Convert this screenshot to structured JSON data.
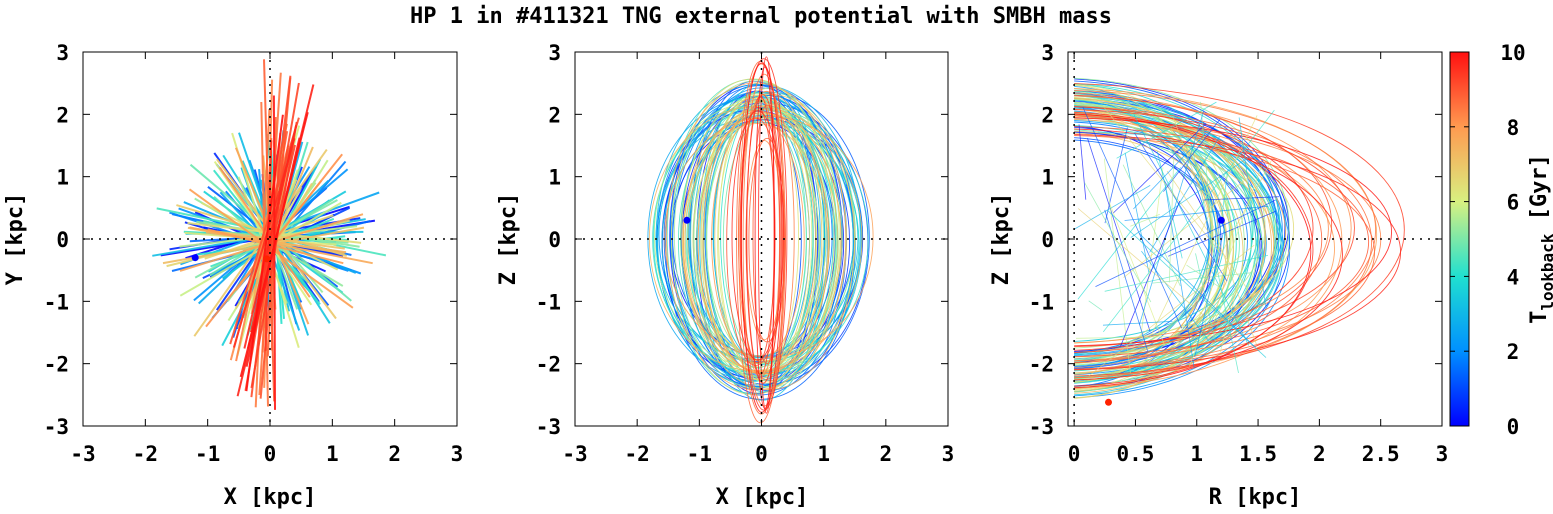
{
  "title": "HP 1 in #411321 TNG external potential with SMBH mass",
  "colors": {
    "frame": "#000000",
    "zero_axis": "#000000",
    "current_position_blue": "#0000ff",
    "current_position_red": "#ff2200"
  },
  "chart_data": [
    {
      "id": "xy",
      "type": "line",
      "description_kind": "orbit projection",
      "xlabel": "X [kpc]",
      "ylabel": "Y [kpc]",
      "xlim": [
        -3,
        3
      ],
      "ylim": [
        -3,
        3
      ],
      "xticks": [
        -3,
        -2,
        -1,
        0,
        1,
        2,
        3
      ],
      "yticks": [
        -3,
        -2,
        -1,
        0,
        1,
        2,
        3
      ],
      "xtick_labels": [
        "-3",
        "-2",
        "-1",
        "0",
        "1",
        "2",
        "3"
      ],
      "ytick_labels": [
        "-3",
        "-2",
        "-1",
        "0",
        "1",
        "2",
        "3"
      ],
      "zero_lines": true,
      "markers": [
        {
          "x": -1.2,
          "y": -0.3,
          "color": "#0000ff"
        },
        {
          "x": -0.05,
          "y": -0.32,
          "color": "#ff2200"
        }
      ]
    },
    {
      "id": "xz",
      "type": "line",
      "description_kind": "orbit projection",
      "xlabel": "X [kpc]",
      "ylabel": "Z [kpc]",
      "xlim": [
        -3,
        3
      ],
      "ylim": [
        -3,
        3
      ],
      "xticks": [
        -3,
        -2,
        -1,
        0,
        1,
        2,
        3
      ],
      "yticks": [
        -3,
        -2,
        -1,
        0,
        1,
        2,
        3
      ],
      "xtick_labels": [
        "-3",
        "-2",
        "-1",
        "0",
        "1",
        "2",
        "3"
      ],
      "ytick_labels": [
        "-3",
        "-2",
        "-1",
        "0",
        "1",
        "2",
        "3"
      ],
      "zero_lines": true,
      "markers": [
        {
          "x": -1.2,
          "y": 0.3,
          "color": "#0000ff"
        }
      ]
    },
    {
      "id": "rz",
      "type": "line",
      "description_kind": "meridional orbit",
      "xlabel": "R [kpc]",
      "ylabel": "Z [kpc]",
      "xlim": [
        -0.05,
        3
      ],
      "ylim": [
        -3,
        3
      ],
      "xticks": [
        0,
        0.5,
        1,
        1.5,
        2,
        2.5,
        3
      ],
      "yticks": [
        -3,
        -2,
        -1,
        0,
        1,
        2,
        3
      ],
      "xtick_labels": [
        "0",
        "0.5",
        "1",
        "1.5",
        "2",
        "2.5",
        "3"
      ],
      "ytick_labels": [
        "-3",
        "-2",
        "-1",
        "0",
        "1",
        "2",
        "3"
      ],
      "zero_lines": true,
      "markers": [
        {
          "x": 1.2,
          "y": 0.3,
          "color": "#0000ff"
        },
        {
          "x": 0.28,
          "y": -2.62,
          "color": "#ff2200"
        }
      ]
    }
  ],
  "colorbar": {
    "label_main": "T",
    "label_sub": "lookback",
    "label_unit": " [Gyr]",
    "range": [
      0,
      10
    ],
    "ticks": [
      0,
      2,
      4,
      6,
      8,
      10
    ],
    "tick_labels": [
      "0",
      "2",
      "4",
      "6",
      "8",
      "10"
    ],
    "stops": [
      {
        "t": 0,
        "color": "#0000ff"
      },
      {
        "t": 0.2,
        "color": "#0090ff"
      },
      {
        "t": 0.4,
        "color": "#20e0d0"
      },
      {
        "t": 0.6,
        "color": "#d8f080"
      },
      {
        "t": 0.8,
        "color": "#ff9a50"
      },
      {
        "t": 1,
        "color": "#ff1010"
      }
    ]
  }
}
